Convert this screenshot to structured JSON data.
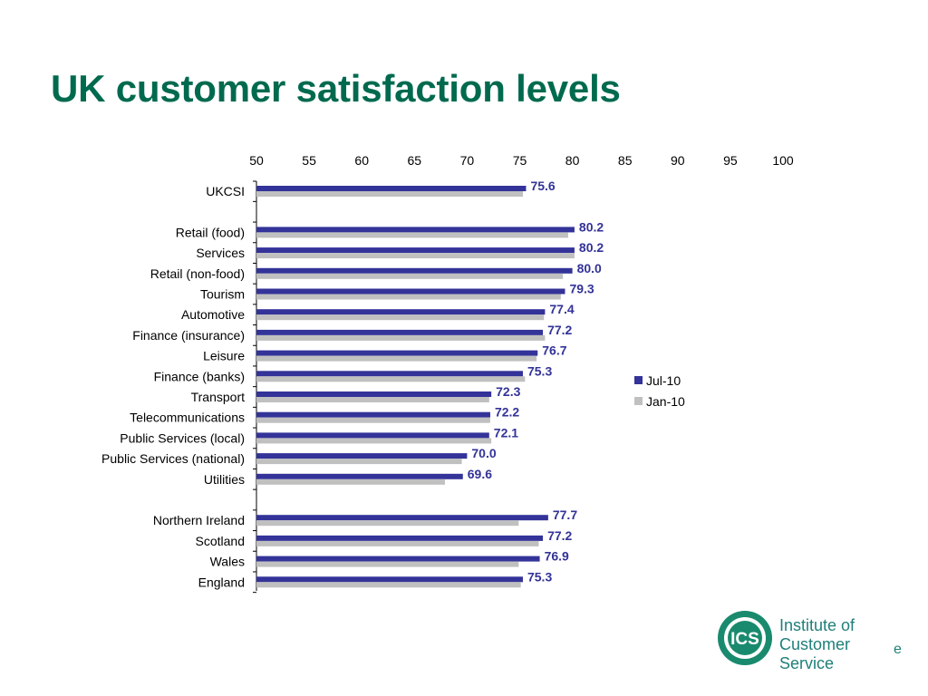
{
  "page": {
    "title": "UK customer satisfaction levels"
  },
  "chart_data": {
    "type": "bar",
    "orientation": "horizontal",
    "title": "",
    "xlim": [
      50,
      100
    ],
    "xticks": [
      "50",
      "55",
      "60",
      "65",
      "70",
      "75",
      "80",
      "85",
      "90",
      "95",
      "100"
    ],
    "x_axis_position": "top",
    "grid": false,
    "legend_position": "right",
    "categories": [
      "UKCSI",
      "Retail (food)",
      "Services",
      "Retail (non-food)",
      "Tourism",
      "Automotive",
      "Finance (insurance)",
      "Leisure",
      "Finance (banks)",
      "Transport",
      "Telecommunications",
      "Public Services (local)",
      "Public Services (national)",
      "Utilities",
      "Northern Ireland",
      "Scotland",
      "Wales",
      "England"
    ],
    "groups": [
      [
        0
      ],
      [
        1,
        2,
        3,
        4,
        5,
        6,
        7,
        8,
        9,
        10,
        11,
        12,
        13
      ],
      [
        14,
        15,
        16,
        17
      ]
    ],
    "series": [
      {
        "name": "Jul-10",
        "color": "#333399",
        "values": [
          75.6,
          80.2,
          80.2,
          80.0,
          79.3,
          77.4,
          77.2,
          76.7,
          75.3,
          72.3,
          72.2,
          72.1,
          70.0,
          69.6,
          77.7,
          77.2,
          76.9,
          75.3
        ],
        "data_labels": [
          "75.6",
          "80.2",
          "80.2",
          "80.0",
          "79.3",
          "77.4",
          "77.2",
          "76.7",
          "75.3",
          "72.3",
          "72.2",
          "72.1",
          "70.0",
          "69.6",
          "77.7",
          "77.2",
          "76.9",
          "75.3"
        ]
      },
      {
        "name": "Jan-10",
        "color": "#c0c0c0",
        "values": [
          75.3,
          79.6,
          80.2,
          79.1,
          78.9,
          77.3,
          77.4,
          76.6,
          75.5,
          72.1,
          72.2,
          72.3,
          69.5,
          67.9,
          74.9,
          76.8,
          74.9,
          75.1
        ]
      }
    ]
  },
  "logo": {
    "mark": "ICS",
    "line1": "Institute of",
    "line2": "Customer Service",
    "suffix": "e"
  }
}
